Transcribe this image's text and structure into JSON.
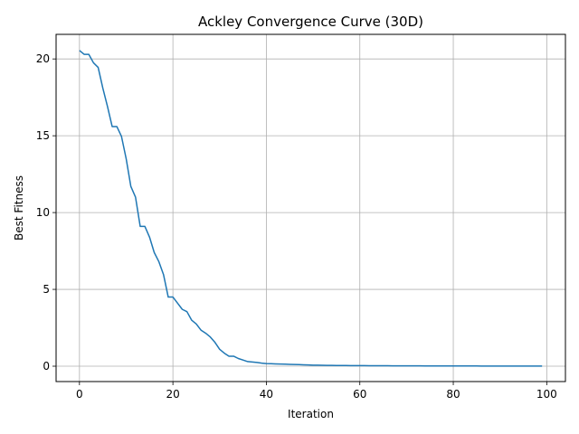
{
  "chart_data": {
    "type": "line",
    "title": "Ackley Convergence Curve (30D)",
    "xlabel": "Iteration",
    "ylabel": "Best Fitness",
    "xlim": [
      -5,
      104
    ],
    "ylim": [
      -1.0,
      21.6
    ],
    "xticks": [
      0,
      20,
      40,
      60,
      80,
      100
    ],
    "yticks": [
      0,
      5,
      10,
      15,
      20
    ],
    "xtick_labels": [
      "0",
      "20",
      "40",
      "60",
      "80",
      "100"
    ],
    "ytick_labels": [
      "0",
      "5",
      "10",
      "15",
      "20"
    ],
    "grid": true,
    "series": [
      {
        "color": "#1f77b4",
        "x": [
          0,
          1,
          2,
          3,
          4,
          5,
          6,
          7,
          8,
          9,
          10,
          11,
          12,
          13,
          14,
          15,
          16,
          17,
          18,
          19,
          20,
          21,
          22,
          23,
          24,
          25,
          26,
          27,
          28,
          29,
          30,
          31,
          32,
          33,
          34,
          35,
          36,
          37,
          38,
          39,
          40,
          41,
          42,
          43,
          44,
          45,
          46,
          47,
          48,
          49,
          50,
          51,
          52,
          53,
          54,
          55,
          56,
          57,
          58,
          59,
          60,
          61,
          62,
          63,
          64,
          65,
          66,
          67,
          68,
          69,
          70,
          71,
          72,
          73,
          74,
          75,
          76,
          77,
          78,
          79,
          80,
          81,
          82,
          83,
          84,
          85,
          86,
          87,
          88,
          89,
          90,
          91,
          92,
          93,
          94,
          95,
          96,
          97,
          98,
          99
        ],
        "y": [
          20.55,
          20.3,
          20.3,
          19.75,
          19.45,
          18.1,
          16.9,
          15.6,
          15.6,
          14.95,
          13.5,
          11.7,
          11.0,
          9.1,
          9.1,
          8.4,
          7.4,
          6.8,
          5.95,
          4.5,
          4.5,
          4.1,
          3.7,
          3.55,
          3.0,
          2.75,
          2.35,
          2.15,
          1.9,
          1.55,
          1.1,
          0.85,
          0.65,
          0.65,
          0.5,
          0.4,
          0.3,
          0.27,
          0.24,
          0.2,
          0.17,
          0.16,
          0.15,
          0.14,
          0.13,
          0.12,
          0.11,
          0.1,
          0.09,
          0.08,
          0.07,
          0.065,
          0.06,
          0.055,
          0.05,
          0.048,
          0.045,
          0.043,
          0.04,
          0.038,
          0.036,
          0.034,
          0.032,
          0.03,
          0.029,
          0.028,
          0.027,
          0.026,
          0.025,
          0.024,
          0.023,
          0.022,
          0.021,
          0.02,
          0.019,
          0.018,
          0.017,
          0.016,
          0.015,
          0.015,
          0.014,
          0.014,
          0.013,
          0.013,
          0.012,
          0.012,
          0.011,
          0.011,
          0.01,
          0.01,
          0.01,
          0.009,
          0.009,
          0.009,
          0.008,
          0.008,
          0.008,
          0.008,
          0.007,
          0.007
        ]
      }
    ]
  }
}
